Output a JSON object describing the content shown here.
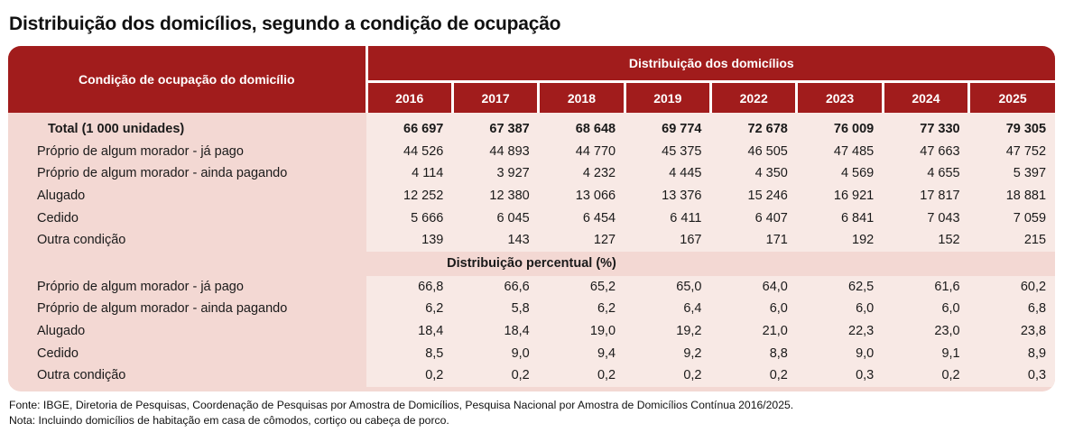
{
  "title": "Distribuição dos domicílios, segundo a condição de ocupação",
  "colors": {
    "header_bg": "#a11c1c",
    "label_bg": "#f3d8d3",
    "value_bg": "#f8e9e5",
    "header_text": "#ffffff"
  },
  "table": {
    "label_header": "Condição de ocupação do domicílio",
    "group_header": "Distribuição dos domicílios",
    "years": [
      "2016",
      "2017",
      "2018",
      "2019",
      "2022",
      "2023",
      "2024",
      "2025"
    ],
    "absolute_rows": [
      {
        "label": "Total (1 000 unidades)",
        "values": [
          "66 697",
          "67 387",
          "68 648",
          "69 774",
          "72 678",
          "76 009",
          "77 330",
          "79 305"
        ]
      },
      {
        "label": "Próprio de algum morador - já pago",
        "values": [
          "44 526",
          "44 893",
          "44 770",
          "45 375",
          "46 505",
          "47 485",
          "47 663",
          "47 752"
        ]
      },
      {
        "label": "Próprio de algum morador - ainda pagando",
        "values": [
          "4 114",
          "3 927",
          "4 232",
          "4 445",
          "4 350",
          "4 569",
          "4 655",
          "5 397"
        ]
      },
      {
        "label": "Alugado",
        "values": [
          "12 252",
          "12 380",
          "13 066",
          "13 376",
          "15 246",
          "16 921",
          "17 817",
          "18 881"
        ]
      },
      {
        "label": "Cedido",
        "values": [
          "5 666",
          "6 045",
          "6 454",
          "6 411",
          "6 407",
          "6 841",
          "7 043",
          "7 059"
        ]
      },
      {
        "label": "Outra condição",
        "values": [
          "139",
          "143",
          "127",
          "167",
          "171",
          "192",
          "152",
          "215"
        ]
      }
    ],
    "percent_section_label": "Distribuição percentual (%)",
    "percent_rows": [
      {
        "label": "Próprio de algum morador - já pago",
        "values": [
          "66,8",
          "66,6",
          "65,2",
          "65,0",
          "64,0",
          "62,5",
          "61,6",
          "60,2"
        ]
      },
      {
        "label": "Próprio de algum morador - ainda pagando",
        "values": [
          "6,2",
          "5,8",
          "6,2",
          "6,4",
          "6,0",
          "6,0",
          "6,0",
          "6,8"
        ]
      },
      {
        "label": "Alugado",
        "values": [
          "18,4",
          "18,4",
          "19,0",
          "19,2",
          "21,0",
          "22,3",
          "23,0",
          "23,8"
        ]
      },
      {
        "label": "Cedido",
        "values": [
          "8,5",
          "9,0",
          "9,4",
          "9,2",
          "8,8",
          "9,0",
          "9,1",
          "8,9"
        ]
      },
      {
        "label": "Outra condição",
        "values": [
          "0,2",
          "0,2",
          "0,2",
          "0,2",
          "0,2",
          "0,3",
          "0,2",
          "0,3"
        ]
      }
    ]
  },
  "footnotes": {
    "source": "Fonte: IBGE, Diretoria de Pesquisas, Coordenação de Pesquisas por Amostra de Domicílios, Pesquisa Nacional por Amostra de Domicílios Contínua 2016/2025.",
    "note": "Nota: Incluindo domicílios de habitação em casa de cômodos, cortiço ou cabeça de porco."
  }
}
